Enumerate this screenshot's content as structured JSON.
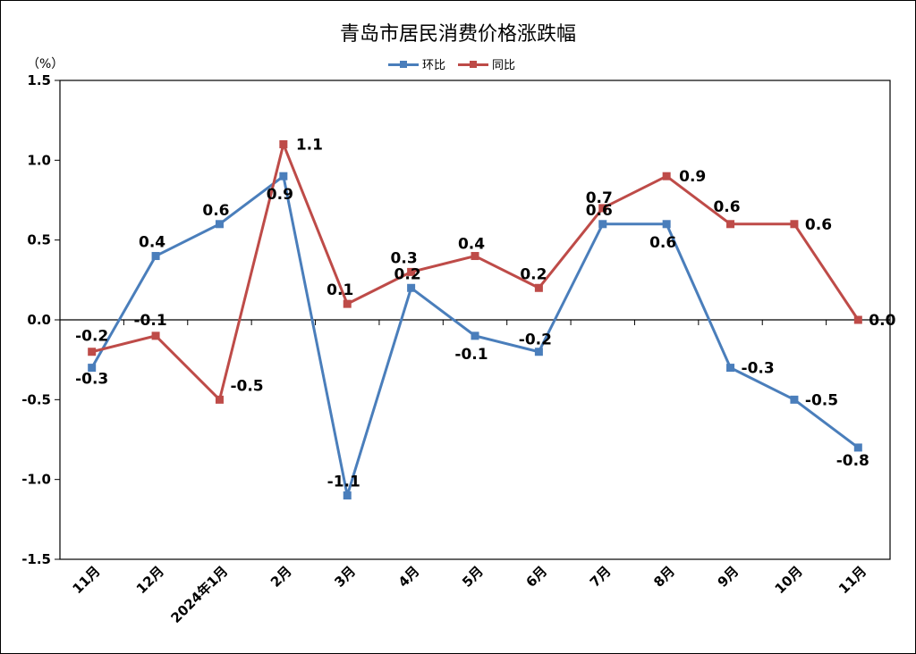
{
  "title": "青岛市居民消费价格涨跌幅",
  "unit_label": "（%）",
  "chart_data": {
    "type": "line",
    "title": "青岛市居民消费价格涨跌幅",
    "ylabel": "（%）",
    "xlabel": "",
    "ylim": [
      -1.5,
      1.5
    ],
    "yticks": [
      -1.5,
      -1.0,
      -0.5,
      0.0,
      0.5,
      1.0,
      1.5
    ],
    "ytick_labels": [
      "-1.5",
      "-1.0",
      "-0.5",
      "0.0",
      "0.5",
      "1.0",
      "1.5"
    ],
    "categories": [
      "11月",
      "12月",
      "2024年1月",
      "2月",
      "3月",
      "4月",
      "5月",
      "6月",
      "7月",
      "8月",
      "9月",
      "10月",
      "11月"
    ],
    "legend_position": "top-center",
    "grid": false,
    "series": [
      {
        "name": "环比",
        "color": "#4a7ebb",
        "values": [
          -0.3,
          0.4,
          0.6,
          0.9,
          -1.1,
          0.2,
          -0.1,
          -0.2,
          0.6,
          0.6,
          -0.3,
          -0.5,
          -0.8
        ],
        "labels": [
          "-0.3",
          "0.4",
          "0.6",
          "0.9",
          "-1.1",
          "0.2",
          "-0.1",
          "-0.2",
          "0.6",
          "0.6",
          "-0.3",
          "-0.5",
          "-0.8"
        ]
      },
      {
        "name": "同比",
        "color": "#be4b48",
        "values": [
          -0.2,
          -0.1,
          -0.5,
          1.1,
          0.1,
          0.3,
          0.4,
          0.2,
          0.7,
          0.9,
          0.6,
          0.6,
          0.0
        ],
        "labels": [
          "-0.2",
          "-0.1",
          "-0.5",
          "1.1",
          "0.1",
          "0.3",
          "0.4",
          "0.2",
          "0.7",
          "0.9",
          "0.6",
          "0.6",
          "0.0"
        ]
      }
    ]
  }
}
